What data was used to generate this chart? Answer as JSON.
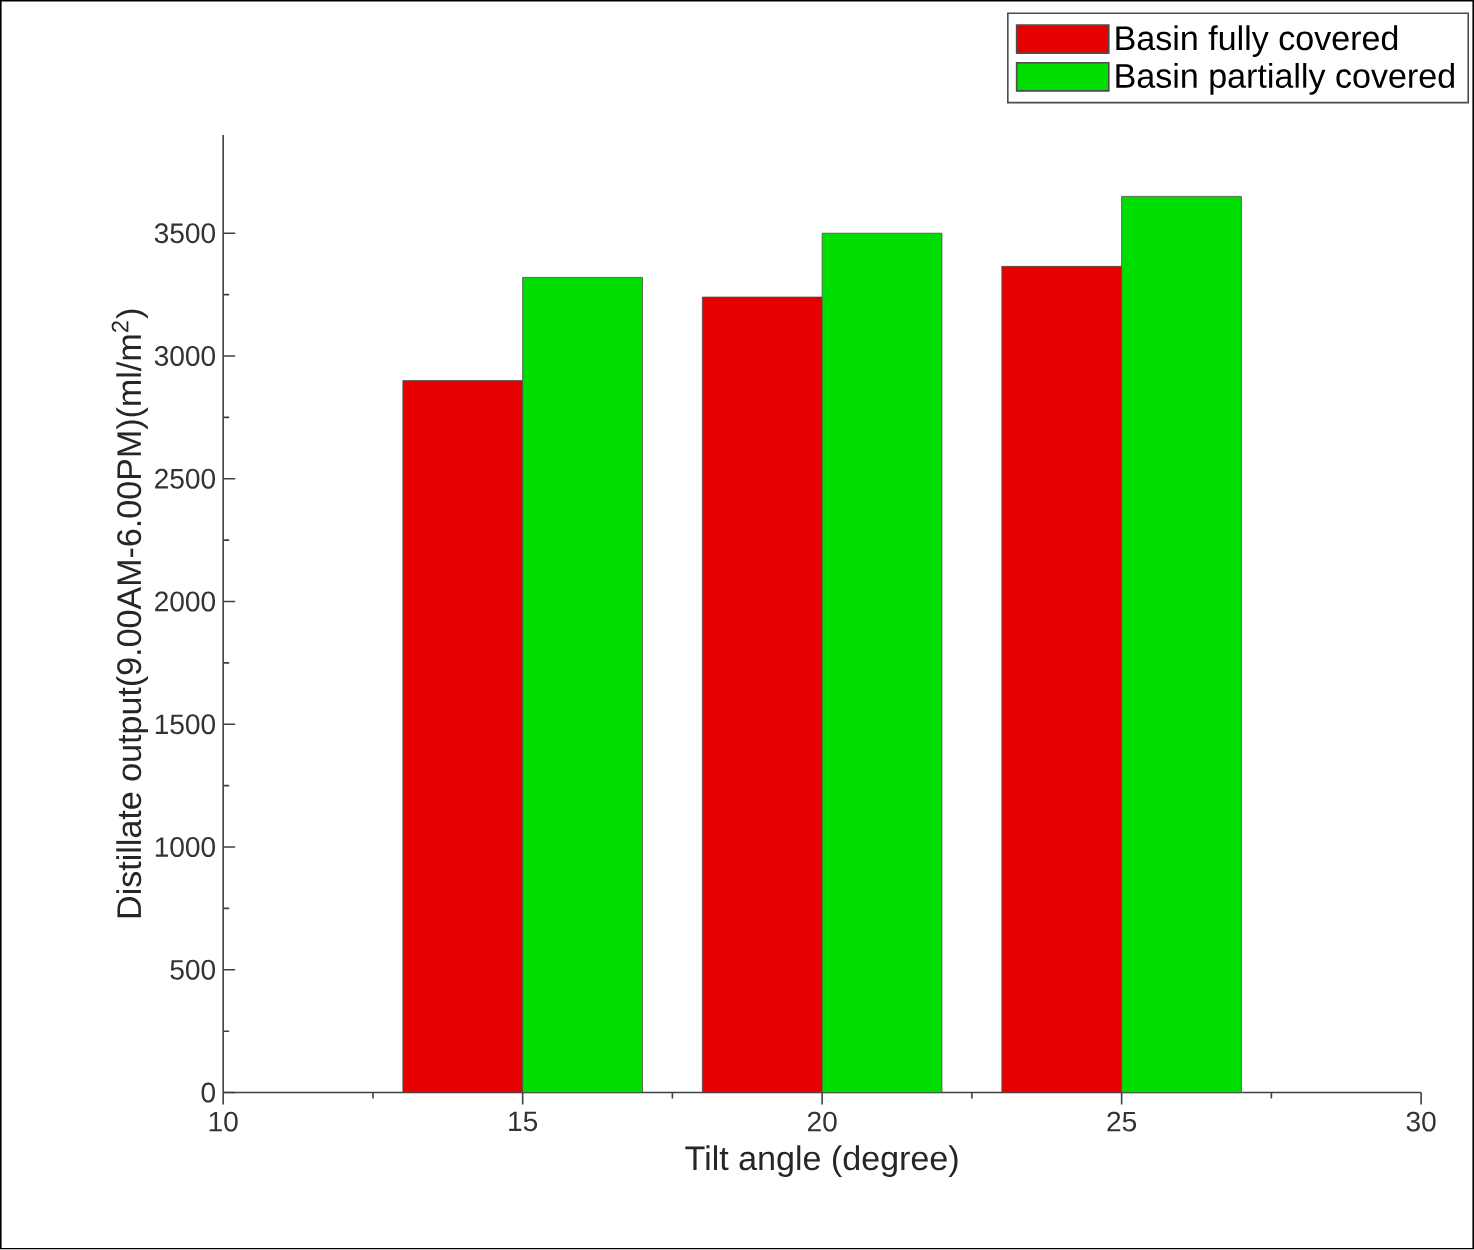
{
  "chart_data": {
    "type": "bar",
    "xlabel": "Tilt angle (degree)",
    "ylabel": "Distillate output(9.00AM-6.00PM)(ml/m$^{2}$)",
    "x": [
      15,
      20,
      25
    ],
    "series": [
      {
        "name": "Basin fully covered",
        "color": "#e60000",
        "values": [
          2900,
          3240,
          3365
        ]
      },
      {
        "name": "Basin partially covered",
        "color": "#00dd00",
        "values": [
          3320,
          3500,
          3650
        ]
      }
    ],
    "xlim": [
      10,
      30
    ],
    "xticks": [
      10,
      15,
      20,
      25,
      30
    ],
    "ylim": [
      0,
      3900
    ],
    "yticks": [
      0,
      500,
      1000,
      1500,
      2000,
      2500,
      3000,
      3500
    ],
    "grid": false,
    "legend": "top right"
  }
}
